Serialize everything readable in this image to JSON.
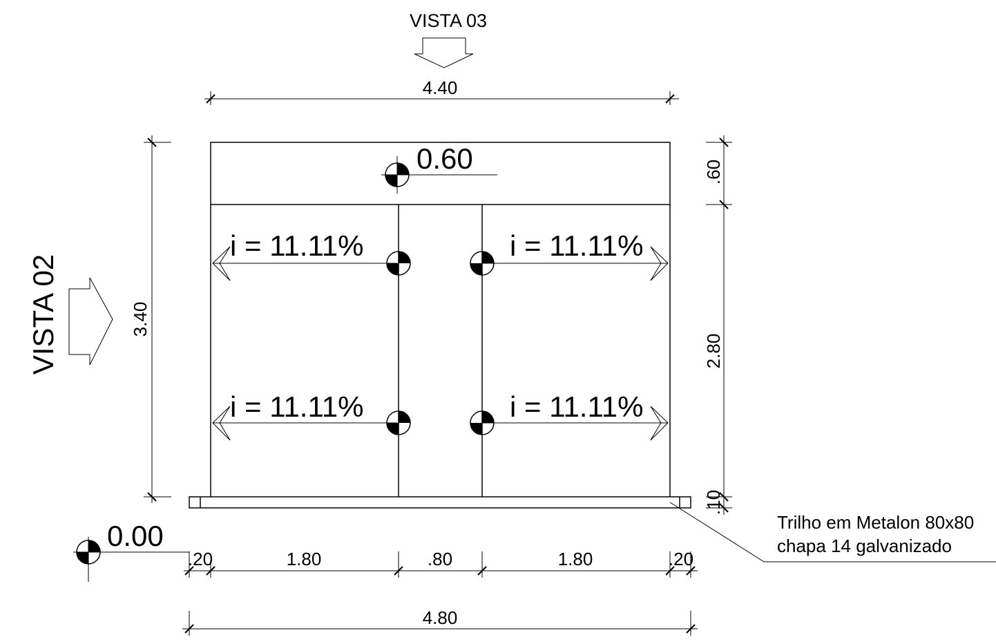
{
  "views": {
    "top": "VISTA 03",
    "left": "VISTA 02"
  },
  "dimensions": {
    "overall_top": "4.40",
    "overall_bottom": "4.80",
    "left_height": "3.40",
    "right_top": ".60",
    "right_middle": "2.80",
    "right_bottom": ".10",
    "bottom_segments": [
      ".20",
      "1.80",
      ".80",
      "1.80",
      ".20"
    ]
  },
  "levels": {
    "top_level": "0.60",
    "base_level": "0.00"
  },
  "slopes": [
    "i = 11.11%",
    "i = 11.11%",
    "i = 11.11%",
    "i = 11.11%"
  ],
  "note": {
    "line1": "Trilho em Metalon 80x80",
    "line2": "chapa 14 galvanizado"
  }
}
